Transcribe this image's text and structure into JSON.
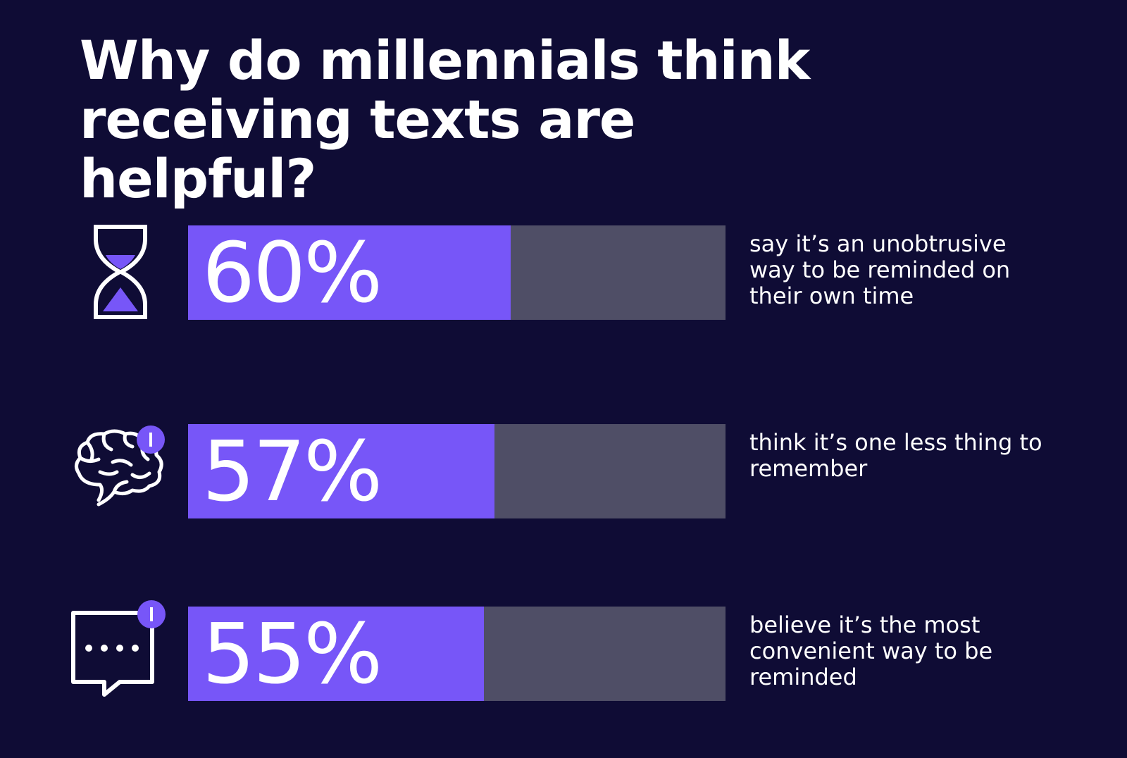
{
  "chart_data": {
    "type": "bar",
    "title": "Why do millennials think receiving texts are helpful?",
    "categories": [
      "say it’s an unobtrusive way to be reminded on their own time",
      "think it’s one less thing to remember",
      "believe it’s the most convenient way to be reminded"
    ],
    "values": [
      60,
      57,
      55
    ],
    "value_labels": [
      "60%",
      "57%",
      "55%"
    ],
    "xlim": [
      0,
      100
    ],
    "color": "#7756f8",
    "track_color": "#4f4e66"
  }
}
